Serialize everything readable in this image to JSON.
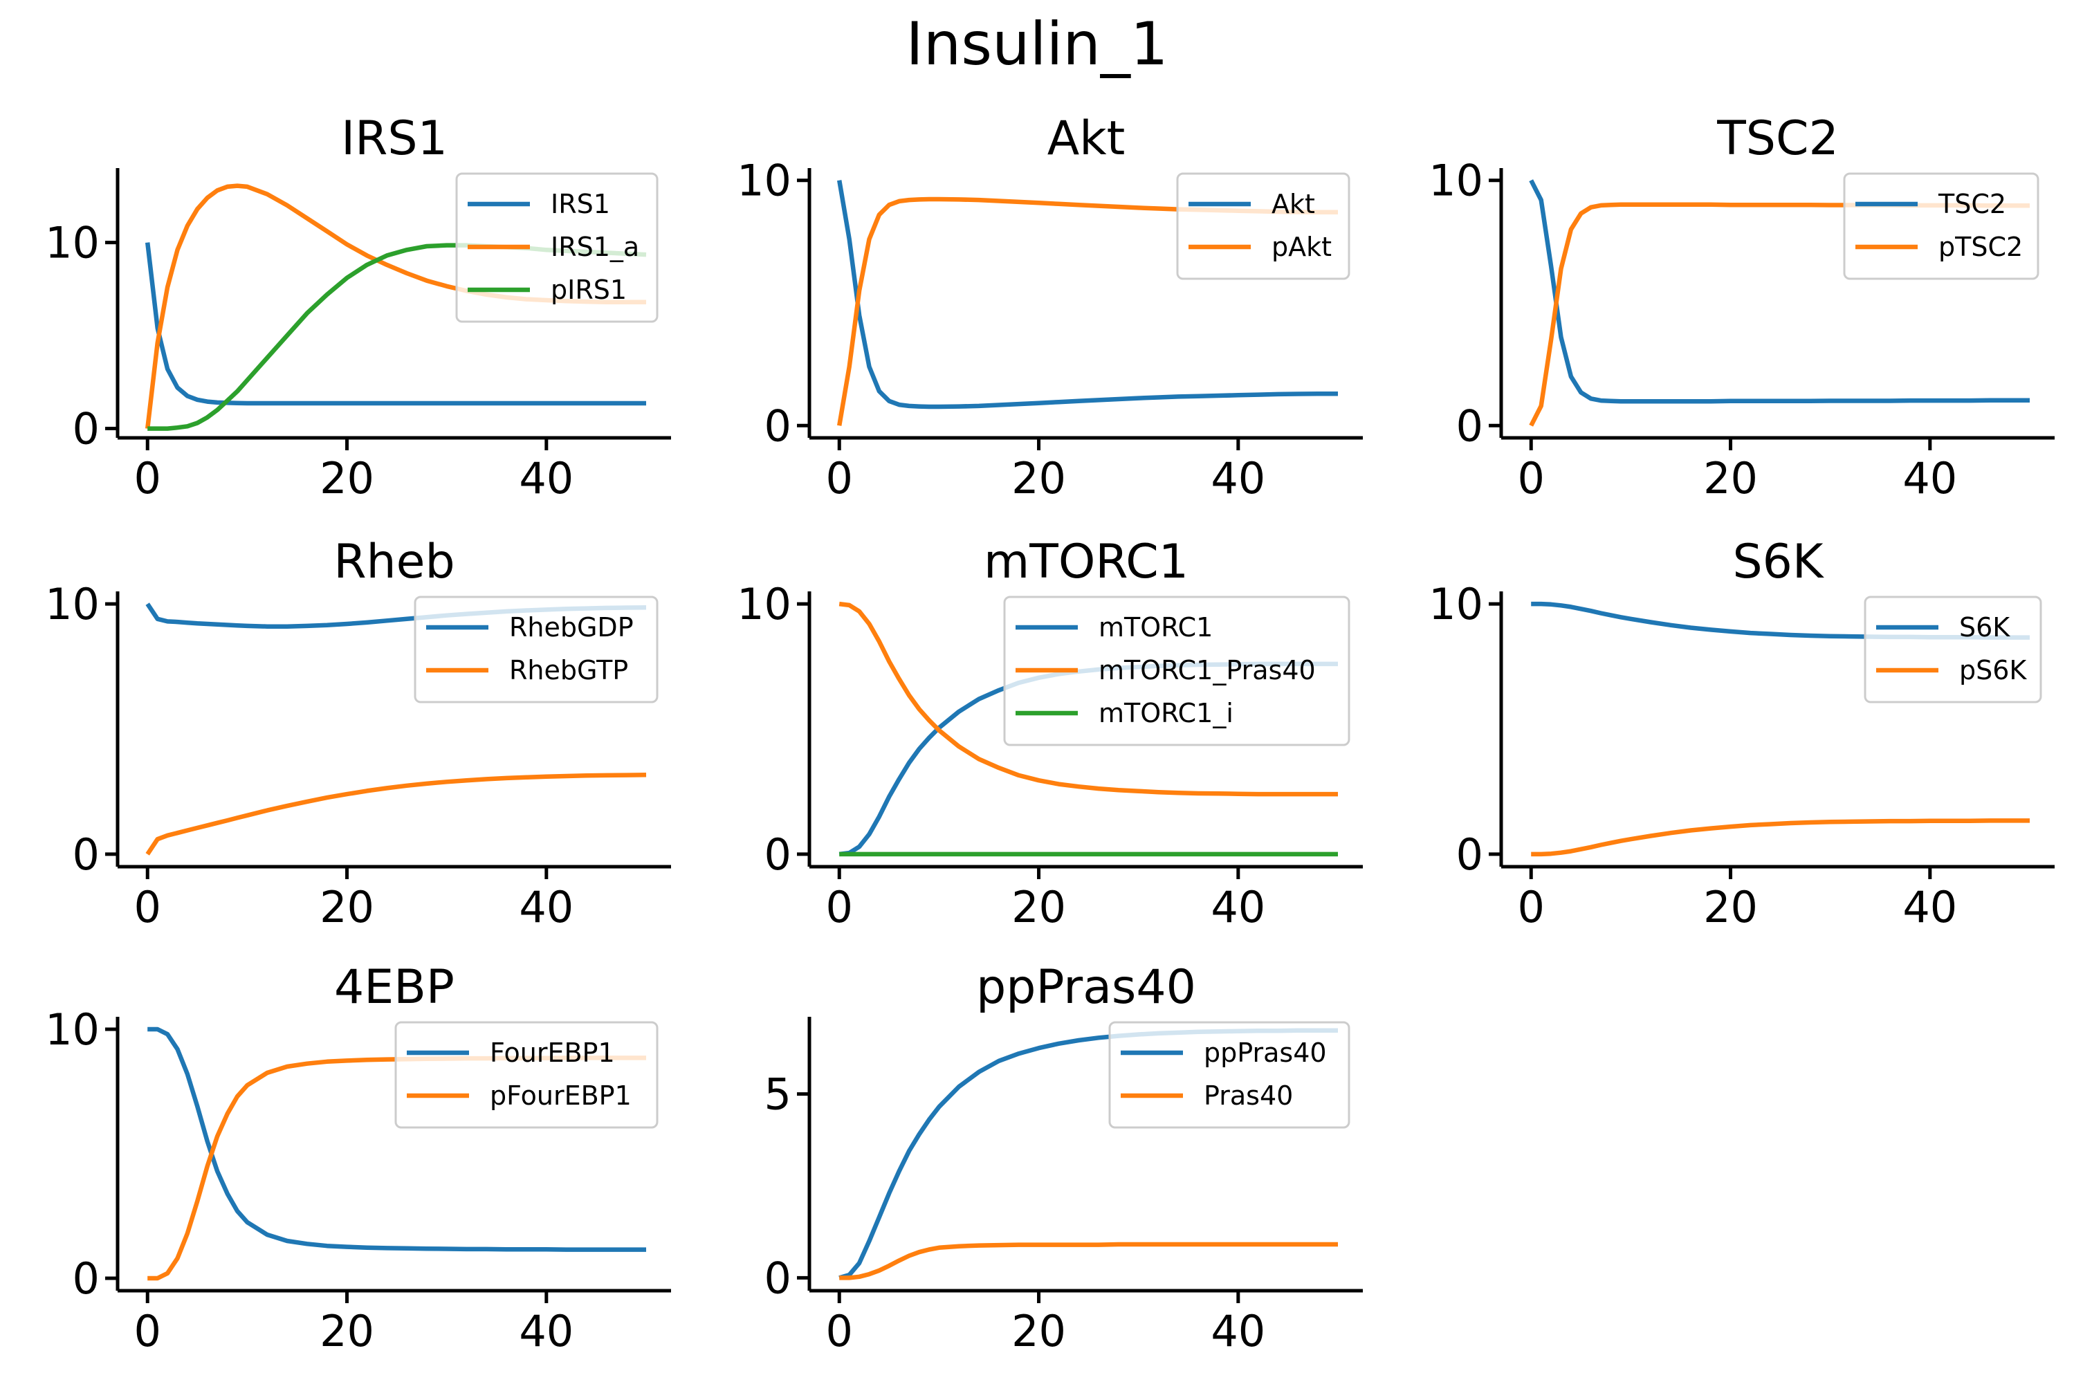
{
  "figure": {
    "title": "Insulin_1"
  },
  "colors": {
    "C0": "#1f77b4",
    "C1": "#ff7f0e",
    "C2": "#2ca02c",
    "axis": "#000000"
  },
  "chart_data": [
    {
      "type": "line",
      "title": "IRS1",
      "xlim": [
        -3,
        52.5
      ],
      "ylim": [
        -0.5,
        14
      ],
      "xticks": [
        0,
        20,
        40
      ],
      "yticks": [
        0,
        10
      ],
      "legend": "upper right",
      "x": [
        0,
        1,
        2,
        3,
        4,
        5,
        6,
        7,
        8,
        9,
        10,
        12,
        14,
        16,
        18,
        20,
        22,
        24,
        26,
        28,
        30,
        32,
        34,
        36,
        38,
        40,
        42,
        44,
        46,
        48,
        50
      ],
      "series": [
        {
          "name": "IRS1",
          "color": "C0",
          "values": [
            10,
            5.4,
            3.2,
            2.2,
            1.75,
            1.55,
            1.45,
            1.4,
            1.38,
            1.37,
            1.36,
            1.36,
            1.36,
            1.36,
            1.36,
            1.36,
            1.36,
            1.36,
            1.36,
            1.36,
            1.36,
            1.36,
            1.36,
            1.36,
            1.36,
            1.36,
            1.36,
            1.36,
            1.36,
            1.36,
            1.36
          ]
        },
        {
          "name": "IRS1_a",
          "color": "C1",
          "values": [
            0,
            4.6,
            7.6,
            9.6,
            10.9,
            11.8,
            12.4,
            12.8,
            13.0,
            13.05,
            13.0,
            12.6,
            12.0,
            11.3,
            10.6,
            9.9,
            9.3,
            8.8,
            8.35,
            7.95,
            7.65,
            7.4,
            7.2,
            7.05,
            6.95,
            6.9,
            6.85,
            6.82,
            6.8,
            6.8,
            6.8
          ]
        },
        {
          "name": "pIRS1",
          "color": "C2",
          "values": [
            0,
            0,
            0,
            0.05,
            0.12,
            0.3,
            0.6,
            1.0,
            1.5,
            2.0,
            2.6,
            3.8,
            5.0,
            6.2,
            7.2,
            8.1,
            8.8,
            9.3,
            9.6,
            9.8,
            9.85,
            9.85,
            9.8,
            9.75,
            9.7,
            9.6,
            9.55,
            9.5,
            9.45,
            9.4,
            9.35
          ]
        }
      ]
    },
    {
      "type": "line",
      "title": "Akt",
      "xlim": [
        -3,
        52.5
      ],
      "ylim": [
        -0.5,
        10.5
      ],
      "xticks": [
        0,
        20,
        40
      ],
      "yticks": [
        0,
        10
      ],
      "legend": "upper right",
      "x": [
        0,
        1,
        2,
        3,
        4,
        5,
        6,
        7,
        8,
        9,
        10,
        12,
        14,
        16,
        18,
        20,
        22,
        24,
        26,
        28,
        30,
        32,
        34,
        36,
        38,
        40,
        42,
        44,
        46,
        48,
        50
      ],
      "series": [
        {
          "name": "Akt",
          "color": "C0",
          "values": [
            10,
            7.6,
            4.5,
            2.4,
            1.4,
            1.0,
            0.85,
            0.8,
            0.78,
            0.77,
            0.77,
            0.78,
            0.8,
            0.84,
            0.88,
            0.92,
            0.96,
            1.0,
            1.04,
            1.08,
            1.12,
            1.15,
            1.18,
            1.2,
            1.22,
            1.24,
            1.26,
            1.28,
            1.29,
            1.3,
            1.3
          ]
        },
        {
          "name": "pAkt",
          "color": "C1",
          "values": [
            0,
            2.4,
            5.5,
            7.6,
            8.6,
            9.0,
            9.15,
            9.2,
            9.22,
            9.23,
            9.23,
            9.22,
            9.2,
            9.16,
            9.12,
            9.08,
            9.04,
            9.0,
            8.96,
            8.92,
            8.88,
            8.85,
            8.82,
            8.8,
            8.78,
            8.76,
            8.74,
            8.72,
            8.71,
            8.7,
            8.7
          ]
        }
      ]
    },
    {
      "type": "line",
      "title": "TSC2",
      "xlim": [
        -3,
        52.5
      ],
      "ylim": [
        -0.5,
        10.5
      ],
      "xticks": [
        0,
        20,
        40
      ],
      "yticks": [
        0,
        10
      ],
      "legend": "upper right",
      "x": [
        0,
        1,
        2,
        3,
        4,
        5,
        6,
        7,
        8,
        9,
        10,
        12,
        14,
        16,
        18,
        20,
        22,
        24,
        26,
        28,
        30,
        32,
        34,
        36,
        38,
        40,
        42,
        44,
        46,
        48,
        50
      ],
      "series": [
        {
          "name": "TSC2",
          "color": "C0",
          "values": [
            10,
            9.2,
            6.5,
            3.6,
            2.0,
            1.35,
            1.1,
            1.02,
            1.0,
            0.99,
            0.99,
            0.99,
            0.99,
            0.99,
            0.99,
            1.0,
            1.0,
            1.0,
            1.0,
            1.0,
            1.01,
            1.01,
            1.01,
            1.01,
            1.02,
            1.02,
            1.02,
            1.02,
            1.03,
            1.03,
            1.03
          ]
        },
        {
          "name": "pTSC2",
          "color": "C1",
          "values": [
            0,
            0.8,
            3.5,
            6.4,
            8.0,
            8.65,
            8.9,
            8.98,
            9.0,
            9.01,
            9.01,
            9.01,
            9.01,
            9.01,
            9.01,
            9.0,
            9.0,
            9.0,
            9.0,
            9.0,
            8.99,
            8.99,
            8.99,
            8.99,
            8.98,
            8.98,
            8.98,
            8.98,
            8.97,
            8.97,
            8.97
          ]
        }
      ]
    },
    {
      "type": "line",
      "title": "Rheb",
      "xlim": [
        -3,
        52.5
      ],
      "ylim": [
        -0.5,
        10.5
      ],
      "xticks": [
        0,
        20,
        40
      ],
      "yticks": [
        0,
        10
      ],
      "legend": "upper right",
      "x": [
        0,
        1,
        2,
        3,
        4,
        5,
        6,
        7,
        8,
        9,
        10,
        12,
        14,
        16,
        18,
        20,
        22,
        24,
        26,
        28,
        30,
        32,
        34,
        36,
        38,
        40,
        42,
        44,
        46,
        48,
        50
      ],
      "series": [
        {
          "name": "RhebGDP",
          "color": "C0",
          "values": [
            10,
            9.4,
            9.3,
            9.28,
            9.25,
            9.22,
            9.2,
            9.18,
            9.16,
            9.14,
            9.12,
            9.1,
            9.1,
            9.12,
            9.15,
            9.2,
            9.26,
            9.33,
            9.4,
            9.47,
            9.54,
            9.6,
            9.65,
            9.7,
            9.74,
            9.77,
            9.8,
            9.82,
            9.84,
            9.85,
            9.86
          ]
        },
        {
          "name": "RhebGTP",
          "color": "C1",
          "values": [
            0,
            0.6,
            0.75,
            0.85,
            0.95,
            1.05,
            1.15,
            1.25,
            1.35,
            1.45,
            1.55,
            1.75,
            1.93,
            2.1,
            2.26,
            2.4,
            2.53,
            2.64,
            2.74,
            2.82,
            2.89,
            2.95,
            3.0,
            3.04,
            3.07,
            3.1,
            3.12,
            3.14,
            3.15,
            3.16,
            3.17
          ]
        }
      ]
    },
    {
      "type": "line",
      "title": "mTORC1",
      "xlim": [
        -3,
        52.5
      ],
      "ylim": [
        -0.5,
        10.5
      ],
      "xticks": [
        0,
        20,
        40
      ],
      "yticks": [
        0,
        10
      ],
      "legend": "upper right",
      "x": [
        0,
        1,
        2,
        3,
        4,
        5,
        6,
        7,
        8,
        9,
        10,
        12,
        14,
        16,
        18,
        20,
        22,
        24,
        26,
        28,
        30,
        32,
        34,
        36,
        38,
        40,
        42,
        44,
        46,
        48,
        50
      ],
      "series": [
        {
          "name": "mTORC1",
          "color": "C0",
          "values": [
            0,
            0.05,
            0.3,
            0.8,
            1.5,
            2.3,
            3.0,
            3.65,
            4.2,
            4.65,
            5.05,
            5.7,
            6.2,
            6.55,
            6.85,
            7.05,
            7.2,
            7.3,
            7.38,
            7.44,
            7.48,
            7.52,
            7.55,
            7.57,
            7.58,
            7.59,
            7.6,
            7.6,
            7.6,
            7.6,
            7.6
          ]
        },
        {
          "name": "mTORC1_Pras40",
          "color": "C1",
          "values": [
            10,
            9.95,
            9.7,
            9.2,
            8.5,
            7.7,
            7.0,
            6.35,
            5.8,
            5.35,
            4.95,
            4.3,
            3.8,
            3.45,
            3.15,
            2.95,
            2.8,
            2.7,
            2.62,
            2.56,
            2.52,
            2.48,
            2.45,
            2.43,
            2.42,
            2.41,
            2.4,
            2.4,
            2.4,
            2.4,
            2.4
          ]
        },
        {
          "name": "mTORC1_i",
          "color": "C2",
          "values": [
            0,
            0,
            0,
            0,
            0,
            0,
            0,
            0,
            0,
            0,
            0,
            0,
            0,
            0,
            0,
            0,
            0,
            0,
            0,
            0,
            0,
            0,
            0,
            0,
            0,
            0,
            0,
            0,
            0,
            0,
            0
          ]
        }
      ]
    },
    {
      "type": "line",
      "title": "S6K",
      "xlim": [
        -3,
        52.5
      ],
      "ylim": [
        -0.5,
        10.5
      ],
      "xticks": [
        0,
        20,
        40
      ],
      "yticks": [
        0,
        10
      ],
      "legend": "upper right",
      "x": [
        0,
        1,
        2,
        3,
        4,
        5,
        6,
        7,
        8,
        9,
        10,
        12,
        14,
        16,
        18,
        20,
        22,
        24,
        26,
        28,
        30,
        32,
        34,
        36,
        38,
        40,
        42,
        44,
        46,
        48,
        50
      ],
      "series": [
        {
          "name": "S6K",
          "color": "C0",
          "values": [
            10,
            10,
            9.98,
            9.94,
            9.88,
            9.8,
            9.72,
            9.63,
            9.55,
            9.47,
            9.4,
            9.27,
            9.15,
            9.05,
            8.97,
            8.9,
            8.84,
            8.8,
            8.76,
            8.73,
            8.71,
            8.7,
            8.69,
            8.68,
            8.68,
            8.67,
            8.67,
            8.67,
            8.66,
            8.66,
            8.66
          ]
        },
        {
          "name": "pS6K",
          "color": "C1",
          "values": [
            0,
            0,
            0.02,
            0.06,
            0.12,
            0.2,
            0.28,
            0.37,
            0.45,
            0.53,
            0.6,
            0.73,
            0.85,
            0.95,
            1.03,
            1.1,
            1.16,
            1.2,
            1.24,
            1.27,
            1.29,
            1.3,
            1.31,
            1.32,
            1.32,
            1.33,
            1.33,
            1.33,
            1.34,
            1.34,
            1.34
          ]
        }
      ]
    },
    {
      "type": "line",
      "title": "4EBP",
      "xlim": [
        -3,
        52.5
      ],
      "ylim": [
        -0.5,
        10.5
      ],
      "xticks": [
        0,
        20,
        40
      ],
      "yticks": [
        0,
        10
      ],
      "legend": "upper right",
      "x": [
        0,
        1,
        2,
        3,
        4,
        5,
        6,
        7,
        8,
        9,
        10,
        12,
        14,
        16,
        18,
        20,
        22,
        24,
        26,
        28,
        30,
        32,
        34,
        36,
        38,
        40,
        42,
        44,
        46,
        48,
        50
      ],
      "series": [
        {
          "name": "FourEBP1",
          "color": "C0",
          "values": [
            10,
            10,
            9.8,
            9.2,
            8.2,
            6.9,
            5.5,
            4.3,
            3.4,
            2.7,
            2.25,
            1.75,
            1.5,
            1.38,
            1.3,
            1.26,
            1.23,
            1.21,
            1.2,
            1.19,
            1.18,
            1.17,
            1.17,
            1.16,
            1.16,
            1.16,
            1.15,
            1.15,
            1.15,
            1.15,
            1.15
          ]
        },
        {
          "name": "pFourEBP1",
          "color": "C1",
          "values": [
            0,
            0,
            0.2,
            0.8,
            1.8,
            3.1,
            4.5,
            5.7,
            6.6,
            7.3,
            7.75,
            8.25,
            8.5,
            8.62,
            8.7,
            8.74,
            8.77,
            8.79,
            8.8,
            8.81,
            8.82,
            8.83,
            8.83,
            8.84,
            8.84,
            8.84,
            8.85,
            8.85,
            8.85,
            8.85,
            8.85
          ]
        }
      ]
    },
    {
      "type": "line",
      "title": "ppPras40",
      "xlim": [
        -3,
        52.5
      ],
      "ylim": [
        -0.35,
        7.1
      ],
      "xticks": [
        0,
        20,
        40
      ],
      "yticks": [
        0,
        5
      ],
      "legend": "upper right",
      "x": [
        0,
        1,
        2,
        3,
        4,
        5,
        6,
        7,
        8,
        9,
        10,
        12,
        14,
        16,
        18,
        20,
        22,
        24,
        26,
        28,
        30,
        32,
        34,
        36,
        38,
        40,
        42,
        44,
        46,
        48,
        50
      ],
      "series": [
        {
          "name": "ppPras40",
          "color": "C0",
          "values": [
            0,
            0.08,
            0.4,
            1.0,
            1.65,
            2.3,
            2.9,
            3.45,
            3.9,
            4.3,
            4.65,
            5.2,
            5.6,
            5.9,
            6.1,
            6.25,
            6.37,
            6.46,
            6.53,
            6.58,
            6.62,
            6.65,
            6.67,
            6.69,
            6.7,
            6.71,
            6.72,
            6.72,
            6.73,
            6.73,
            6.73
          ]
        },
        {
          "name": "Pras40",
          "color": "C1",
          "values": [
            0,
            0,
            0.03,
            0.1,
            0.2,
            0.33,
            0.47,
            0.6,
            0.7,
            0.77,
            0.82,
            0.86,
            0.88,
            0.89,
            0.9,
            0.9,
            0.9,
            0.9,
            0.9,
            0.91,
            0.91,
            0.91,
            0.91,
            0.91,
            0.91,
            0.91,
            0.91,
            0.91,
            0.91,
            0.91,
            0.91
          ]
        }
      ]
    }
  ]
}
